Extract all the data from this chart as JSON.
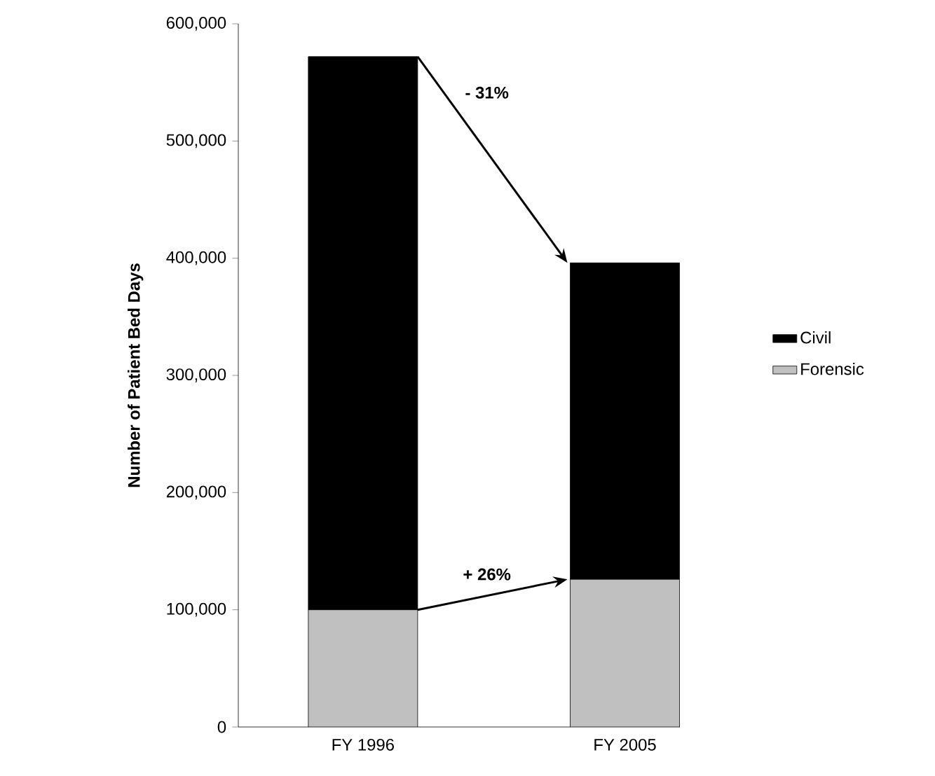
{
  "chart_data": {
    "type": "bar",
    "stacked": true,
    "ylabel": "Number of Patient Bed Days",
    "categories": [
      "FY 1996",
      "FY 2005"
    ],
    "series": [
      {
        "name": "Forensic",
        "color": "#c0c0c0",
        "values": [
          100000,
          126000
        ]
      },
      {
        "name": "Civil",
        "color": "#000000",
        "values": [
          472000,
          270000
        ]
      }
    ],
    "ylim": [
      0,
      600000
    ],
    "yticks": [
      0,
      {
        "value": 100000,
        "label": "100,000"
      },
      {
        "value": 200000,
        "label": "200,000"
      },
      {
        "value": 300000,
        "label": "300,000"
      },
      {
        "value": 400000,
        "label": "400,000"
      },
      {
        "value": 500000,
        "label": "500,000"
      },
      {
        "value": 600000,
        "label": "600,000"
      }
    ],
    "annotations": [
      "- 31%",
      "+ 26%"
    ],
    "legend": "right",
    "grid": false
  }
}
